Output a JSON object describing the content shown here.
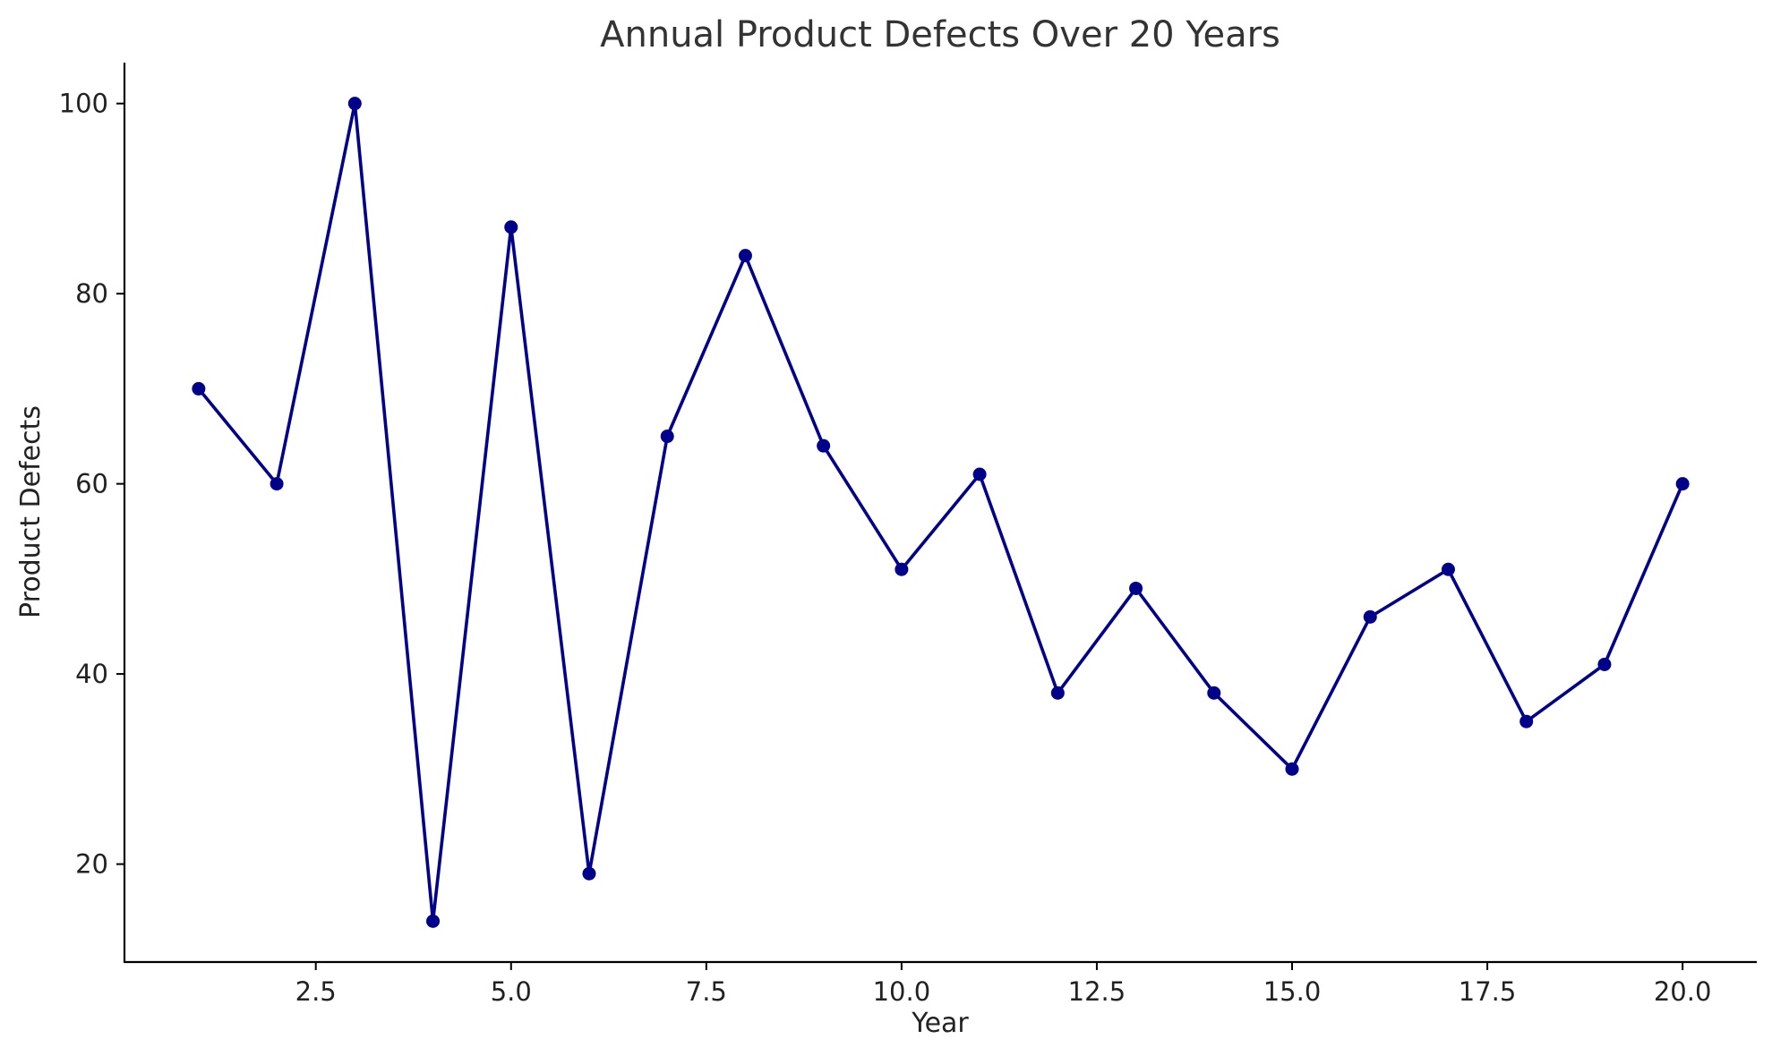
{
  "chart_data": {
    "type": "line",
    "title": "Annual Product Defects Over 20 Years",
    "xlabel": "Year",
    "ylabel": "Product Defects",
    "x": [
      1,
      2,
      3,
      4,
      5,
      6,
      7,
      8,
      9,
      10,
      11,
      12,
      13,
      14,
      15,
      16,
      17,
      18,
      19,
      20
    ],
    "series": [
      {
        "values": [
          70,
          60,
          100,
          14,
          87,
          19,
          65,
          84,
          64,
          51,
          61,
          38,
          49,
          38,
          30,
          46,
          51,
          35,
          41,
          60
        ],
        "color": "#00008b",
        "marker": "circle"
      }
    ],
    "xlim": [
      0.05,
      20.95
    ],
    "ylim": [
      9.7,
      104.3
    ],
    "xticks": [
      2.5,
      5.0,
      7.5,
      10.0,
      12.5,
      15.0,
      17.5,
      20.0
    ],
    "xtick_labels": [
      "2.5",
      "5.0",
      "7.5",
      "10.0",
      "12.5",
      "15.0",
      "17.5",
      "20.0"
    ],
    "yticks": [
      20,
      40,
      60,
      80,
      100
    ],
    "ytick_labels": [
      "20",
      "40",
      "60",
      "80",
      "100"
    ],
    "grid": false,
    "legend": "none"
  }
}
